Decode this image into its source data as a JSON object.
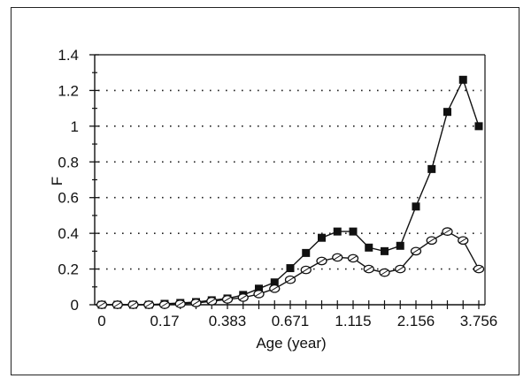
{
  "chart_data": {
    "type": "line",
    "title": "",
    "xlabel": "Age (year)",
    "ylabel": "F",
    "ylim": [
      0,
      1.4
    ],
    "yticks": [
      "0",
      "0.2",
      "0.4",
      "0.6",
      "0.8",
      "1",
      "1.2",
      "1.4"
    ],
    "xtick_labels": [
      "0",
      "0.17",
      "0.383",
      "0.671",
      "1.115",
      "2.156",
      "3.756"
    ],
    "grid": "horizontal dotted at 0.2, 0.4, 0.6, 0.8, 1.0, 1.2",
    "legend": "none",
    "n_points": 25,
    "series": [
      {
        "name": "filled-square",
        "marker": "square-filled",
        "values": [
          0,
          0,
          0,
          0,
          0.005,
          0.01,
          0.015,
          0.025,
          0.035,
          0.055,
          0.09,
          0.125,
          0.205,
          0.29,
          0.375,
          0.41,
          0.41,
          0.32,
          0.3,
          0.33,
          0.55,
          0.76,
          1.08,
          1.26,
          1.0
        ]
      },
      {
        "name": "open-circle",
        "marker": "circle-open",
        "values": [
          0,
          0,
          0,
          0,
          0,
          0.005,
          0.01,
          0.02,
          0.03,
          0.04,
          0.06,
          0.09,
          0.14,
          0.195,
          0.245,
          0.265,
          0.26,
          0.2,
          0.18,
          0.2,
          0.3,
          0.36,
          0.41,
          0.36,
          0.2
        ]
      }
    ]
  }
}
